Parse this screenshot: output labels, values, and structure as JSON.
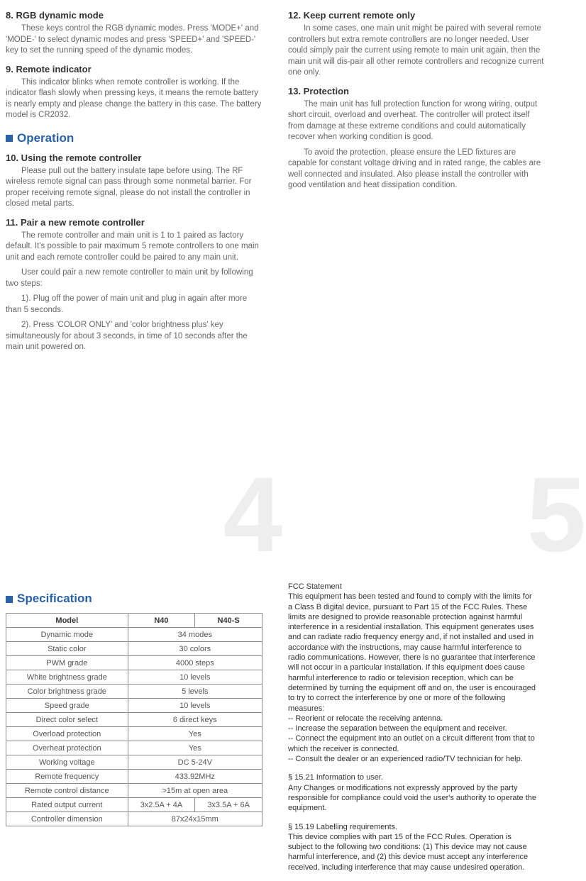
{
  "left": {
    "sec8_title": "8. RGB dynamic mode",
    "sec8_p1": "These keys control the RGB dynamic modes. Press 'MODE+' and 'MODE-' to select dynamic modes and press 'SPEED+' and 'SPEED-' key to set the running speed of the dynamic modes.",
    "sec9_title": "9. Remote indicator",
    "sec9_p1": "This indicator blinks when remote controller is working. If the indicator flash slowly when pressing keys, it means the remote battery is nearly empty and please change the battery in this case. The battery model is CR2032.",
    "operation": "Operation",
    "sec10_title": "10. Using the remote controller",
    "sec10_p1": "Please pull out the battery insulate tape before using. The RF wireless remote signal can pass through some nonmetal barrier. For proper receiving remote signal, please do not install the controller in closed metal parts.",
    "sec11_title": "11. Pair a new remote controller",
    "sec11_p1": "The remote controller and main unit is 1 to 1 paired as factory default. It's possible to pair maximum 5 remote controllers to one main unit and each remote controller could be paired to any main unit.",
    "sec11_p2": "User could pair a new remote controller to main unit by following two steps:",
    "sec11_p3": "1). Plug off the power of main unit and plug in again after more than 5 seconds.",
    "sec11_p4": "2). Press 'COLOR ONLY' and 'color brightness plus' key simultaneously for about 3 seconds, in time of 10 seconds after the main unit powered on."
  },
  "right": {
    "sec12_title": "12. Keep current remote only",
    "sec12_p1": "In some cases, one main unit might be paired with several remote controllers but extra remote controllers are no longer needed.  User could  simply pair the current using remote to main unit again, then the main unit will dis-pair all other remote controllers and recognize current one only.",
    "sec13_title": "13. Protection",
    "sec13_p1": "The main unit has full protection function for wrong wiring, output short circuit, overload and overheat. The controller will protect itself from damage at these extreme conditions and could automatically recover when working condition is good.",
    "sec13_p2": "To avoid the protection, please ensure the LED fixtures are capable for constant voltage driving and in rated range, the cables are well connected and insulated. Also please install the controller with good ventilation and heat dissipation condition."
  },
  "big4": "4",
  "big5": "5",
  "spec_title": "Specification",
  "spec": {
    "h_model": "Model",
    "h_n40": "N40",
    "h_n40s": "N40-S",
    "rows": [
      {
        "l": "Dynamic mode",
        "v": "34 modes"
      },
      {
        "l": "Static color",
        "v": "30 colors"
      },
      {
        "l": "PWM grade",
        "v": "4000 steps"
      },
      {
        "l": "White brightness grade",
        "v": "10 levels"
      },
      {
        "l": "Color brightness grade",
        "v": "5 levels"
      },
      {
        "l": "Speed grade",
        "v": "10 levels"
      },
      {
        "l": "Direct color select",
        "v": "6 direct keys"
      },
      {
        "l": "Overload protection",
        "v": "Yes"
      },
      {
        "l": "Overheat protection",
        "v": "Yes"
      },
      {
        "l": "Working voltage",
        "v": "DC 5-24V"
      },
      {
        "l": "Remote frequency",
        "v": "433.92MHz"
      },
      {
        "l": "Remote control distance",
        "v": ">15m at open area"
      }
    ],
    "rated_l": "Rated output current",
    "rated_a": "3x2.5A + 4A",
    "rated_b": "3x3.5A + 6A",
    "dim_l": "Controller dimension",
    "dim_v": "87x24x15mm"
  },
  "fcc": {
    "h1": "FCC Statement",
    "p1": "This equipment has been tested and found to comply with the limits for a Class B digital device, pursuant to Part 15 of the FCC Rules. These limits are designed to provide reasonable protection against harmful interference in a residential installation. This equipment generates uses and can radiate radio frequency energy and, if not installed and used in accordance with the instructions, may cause harmful interference to radio communications. However, there is no guarantee that interference will not occur in a particular installation. If this equipment does cause harmful interference to radio or television reception, which can be determined by turning the equipment off and on, the user is encouraged to try to correct the interference by one or more of the following measures:",
    "m1": "-- Reorient or relocate the receiving antenna.",
    "m2": "-- Increase the separation between the equipment and receiver.",
    "m3": "-- Connect the equipment into an outlet on a circuit different from that to which the receiver is connected.",
    "m4": "-- Consult the dealer or an experienced radio/TV technician for help.",
    "p2h": "§ 15.21 Information to user.",
    "p2": "Any Changes or modifications not expressly approved by the party responsible for compliance could void the user's authority to operate the equipment.",
    "p3h": "§ 15.19 Labelling requirements.",
    "p3": "This device complies with part 15 of the FCC Rules. Operation is subject to the following two conditions: (1) This device may not cause harmful interference, and (2) this device must accept any interference received, including interference that may cause undesired operation."
  }
}
